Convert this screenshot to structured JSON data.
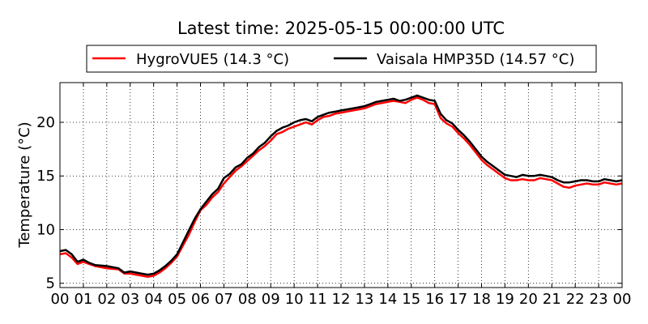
{
  "chart_data": {
    "type": "line",
    "title": "Latest time: 2025-05-15 00:00:00 UTC",
    "xlabel": "",
    "ylabel": "Temperature (°C)",
    "x_ticks": [
      "00",
      "01",
      "02",
      "03",
      "04",
      "05",
      "06",
      "07",
      "08",
      "09",
      "10",
      "11",
      "12",
      "13",
      "14",
      "15",
      "16",
      "17",
      "18",
      "19",
      "20",
      "21",
      "22",
      "23",
      "00"
    ],
    "y_ticks": [
      5,
      10,
      15,
      20
    ],
    "xlim": [
      0,
      24
    ],
    "ylim": [
      4.6,
      23.7
    ],
    "grid": true,
    "legend_position": "top",
    "series": [
      {
        "name": "HygroVUE5 (14.3 °C)",
        "color": "#ff0000",
        "x": [
          0,
          0.25,
          0.5,
          0.75,
          1,
          1.25,
          1.5,
          2,
          2.5,
          2.75,
          3,
          3.25,
          3.5,
          3.75,
          4,
          4.25,
          4.5,
          4.75,
          5,
          5.25,
          5.5,
          5.75,
          6,
          6.25,
          6.5,
          6.75,
          7,
          7.25,
          7.5,
          7.75,
          8,
          8.25,
          8.5,
          8.75,
          9,
          9.25,
          9.5,
          9.75,
          10,
          10.25,
          10.5,
          10.75,
          11,
          11.25,
          11.5,
          11.75,
          12,
          12.25,
          12.5,
          12.75,
          13,
          13.25,
          13.5,
          13.75,
          14,
          14.25,
          14.5,
          14.75,
          15,
          15.25,
          15.5,
          15.75,
          16,
          16.25,
          16.5,
          16.75,
          17,
          17.25,
          17.5,
          17.75,
          18,
          18.25,
          18.5,
          18.75,
          19,
          19.25,
          19.5,
          19.75,
          20,
          20.25,
          20.5,
          20.75,
          21,
          21.25,
          21.5,
          21.75,
          22,
          22.25,
          22.5,
          22.75,
          23,
          23.25,
          23.5,
          23.75,
          24
        ],
        "y": [
          7.7,
          7.8,
          7.4,
          6.8,
          7.0,
          6.8,
          6.6,
          6.4,
          6.3,
          5.9,
          5.9,
          5.8,
          5.7,
          5.6,
          5.7,
          6.0,
          6.4,
          6.9,
          7.5,
          8.5,
          9.5,
          10.7,
          11.8,
          12.3,
          13.0,
          13.5,
          14.3,
          14.9,
          15.5,
          15.9,
          16.4,
          16.9,
          17.4,
          17.8,
          18.3,
          18.9,
          19.1,
          19.4,
          19.6,
          19.8,
          20.0,
          19.8,
          20.2,
          20.5,
          20.6,
          20.8,
          20.9,
          21.0,
          21.1,
          21.2,
          21.3,
          21.5,
          21.7,
          21.8,
          21.9,
          22.0,
          21.9,
          21.8,
          22.1,
          22.3,
          22.1,
          21.8,
          21.7,
          20.4,
          19.9,
          19.6,
          19.0,
          18.5,
          17.9,
          17.2,
          16.5,
          16.0,
          15.6,
          15.2,
          14.8,
          14.6,
          14.6,
          14.7,
          14.6,
          14.6,
          14.8,
          14.7,
          14.6,
          14.3,
          14.0,
          13.9,
          14.1,
          14.2,
          14.3,
          14.2,
          14.2,
          14.4,
          14.3,
          14.2,
          14.3
        ]
      },
      {
        "name": "Vaisala HMP35D (14.57 °C)",
        "color": "#000000",
        "x": [
          0,
          0.25,
          0.5,
          0.75,
          1,
          1.25,
          1.5,
          2,
          2.5,
          2.75,
          3,
          3.25,
          3.5,
          3.75,
          4,
          4.25,
          4.5,
          4.75,
          5,
          5.25,
          5.5,
          5.75,
          6,
          6.25,
          6.5,
          6.75,
          7,
          7.25,
          7.5,
          7.75,
          8,
          8.25,
          8.5,
          8.75,
          9,
          9.25,
          9.5,
          9.75,
          10,
          10.25,
          10.5,
          10.75,
          11,
          11.25,
          11.5,
          11.75,
          12,
          12.25,
          12.5,
          12.75,
          13,
          13.25,
          13.5,
          13.75,
          14,
          14.25,
          14.5,
          14.75,
          15,
          15.25,
          15.5,
          15.75,
          16,
          16.25,
          16.5,
          16.75,
          17,
          17.25,
          17.5,
          17.75,
          18,
          18.25,
          18.5,
          18.75,
          19,
          19.25,
          19.5,
          19.75,
          20,
          20.25,
          20.5,
          20.75,
          21,
          21.25,
          21.5,
          21.75,
          22,
          22.25,
          22.5,
          22.75,
          23,
          23.25,
          23.5,
          23.75,
          24
        ],
        "y": [
          8.0,
          8.1,
          7.7,
          7.0,
          7.2,
          6.9,
          6.7,
          6.6,
          6.4,
          6.0,
          6.1,
          6.0,
          5.9,
          5.8,
          5.9,
          6.2,
          6.6,
          7.1,
          7.7,
          8.8,
          9.9,
          11.0,
          11.9,
          12.6,
          13.3,
          13.8,
          14.8,
          15.2,
          15.8,
          16.1,
          16.7,
          17.1,
          17.7,
          18.1,
          18.7,
          19.2,
          19.5,
          19.7,
          20.0,
          20.2,
          20.3,
          20.1,
          20.5,
          20.7,
          20.9,
          21.0,
          21.1,
          21.2,
          21.3,
          21.4,
          21.5,
          21.7,
          21.9,
          22.0,
          22.1,
          22.2,
          22.0,
          22.1,
          22.3,
          22.5,
          22.3,
          22.1,
          22.0,
          20.8,
          20.2,
          19.9,
          19.3,
          18.8,
          18.2,
          17.5,
          16.8,
          16.3,
          15.9,
          15.5,
          15.1,
          15.0,
          14.9,
          15.1,
          15.0,
          15.0,
          15.1,
          15.0,
          14.9,
          14.6,
          14.4,
          14.4,
          14.5,
          14.6,
          14.6,
          14.5,
          14.5,
          14.7,
          14.6,
          14.5,
          14.6
        ]
      }
    ]
  }
}
